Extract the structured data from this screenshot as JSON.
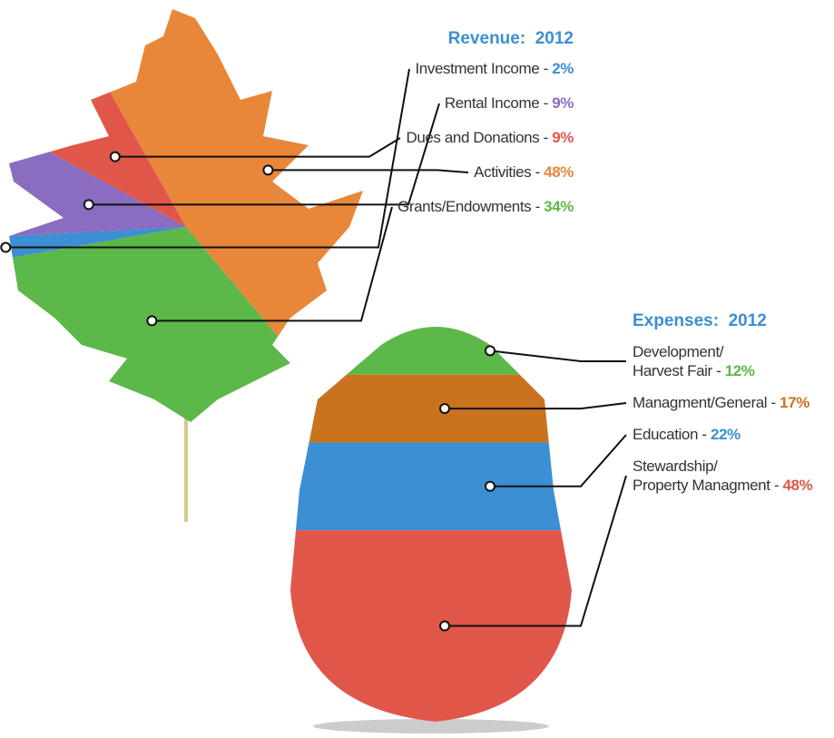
{
  "chart_data": [
    {
      "type": "pie",
      "title": "Revenue:  2012",
      "label_separator": " - ",
      "categories": [
        "Investment Income",
        "Rental Income",
        "Dues and Donations",
        "Activities",
        "Grants/Endowments"
      ],
      "values": [
        2,
        9,
        9,
        48,
        34
      ],
      "value_labels": [
        "2%",
        "9%",
        "9%",
        "48%",
        "34%"
      ],
      "colors": [
        "#3b8fd2",
        "#8a6cc0",
        "#e0574a",
        "#e8873a",
        "#5cb848"
      ]
    },
    {
      "type": "stacked-bar",
      "title": "Expenses:  2012",
      "label_separator": " - ",
      "categories": [
        "Development/\nHarvest Fair",
        "Managment/General",
        "Education",
        "Stewardship/\nProperty Managment"
      ],
      "values": [
        12,
        17,
        22,
        48
      ],
      "value_labels": [
        "12%",
        "17%",
        "22%",
        "48%"
      ],
      "colors": [
        "#5cb848",
        "#c9731f",
        "#3b8fd2",
        "#e0574a"
      ]
    }
  ]
}
